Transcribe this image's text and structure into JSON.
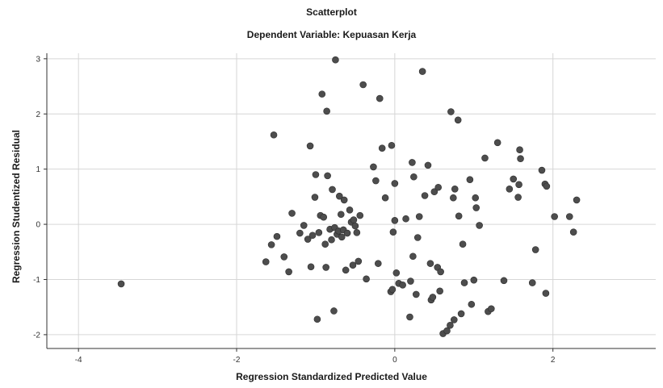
{
  "chart_data": {
    "type": "scatter",
    "title": "Scatterplot",
    "subtitle": "Dependent Variable: Kepuasan Kerja",
    "xlabel": "Regression Standardized Predicted Value",
    "ylabel": "Regression Studentized Residual",
    "xlim": [
      -4.4,
      3.3
    ],
    "ylim": [
      -2.25,
      3.1
    ],
    "x_ticks": [
      -4,
      -2,
      0,
      2
    ],
    "x_tick_labels": [
      "-4",
      "-2",
      "0",
      "2"
    ],
    "y_ticks": [
      -2,
      -1,
      0,
      1,
      2,
      3
    ],
    "y_tick_labels": [
      "-2",
      "-1",
      "0",
      "1",
      "2",
      "3"
    ],
    "grid": true,
    "colors": {
      "points": "#4d4d4d",
      "grid": "#d6d6d6",
      "axis": "#333333"
    },
    "points": [
      [
        -3.46,
        -1.08
      ],
      [
        -1.53,
        1.62
      ],
      [
        -1.63,
        -0.68
      ],
      [
        -1.56,
        -0.37
      ],
      [
        -1.49,
        -0.22
      ],
      [
        -1.4,
        -0.59
      ],
      [
        -1.34,
        -0.86
      ],
      [
        -1.3,
        0.2
      ],
      [
        -1.2,
        -0.16
      ],
      [
        -1.15,
        -0.02
      ],
      [
        -1.1,
        -0.27
      ],
      [
        -1.07,
        1.42
      ],
      [
        -1.06,
        -0.77
      ],
      [
        -1.04,
        -0.2
      ],
      [
        -1.01,
        0.49
      ],
      [
        -1.0,
        0.9
      ],
      [
        -0.98,
        -1.72
      ],
      [
        -0.96,
        -0.15
      ],
      [
        -0.94,
        0.16
      ],
      [
        -0.92,
        2.36
      ],
      [
        -0.9,
        0.13
      ],
      [
        -0.88,
        -0.36
      ],
      [
        -0.87,
        -0.78
      ],
      [
        -0.86,
        2.05
      ],
      [
        -0.85,
        0.88
      ],
      [
        -0.82,
        -0.09
      ],
      [
        -0.8,
        -0.28
      ],
      [
        -0.79,
        0.63
      ],
      [
        -0.77,
        -1.57
      ],
      [
        -0.76,
        -0.06
      ],
      [
        -0.75,
        2.98
      ],
      [
        -0.73,
        -0.18
      ],
      [
        -0.71,
        -0.12
      ],
      [
        -0.7,
        0.51
      ],
      [
        -0.68,
        0.18
      ],
      [
        -0.67,
        -0.23
      ],
      [
        -0.65,
        -0.1
      ],
      [
        -0.64,
        0.44
      ],
      [
        -0.62,
        -0.83
      ],
      [
        -0.6,
        -0.16
      ],
      [
        -0.57,
        0.26
      ],
      [
        -0.55,
        0.04
      ],
      [
        -0.53,
        -0.74
      ],
      [
        -0.52,
        0.08
      ],
      [
        -0.5,
        -0.03
      ],
      [
        -0.48,
        -0.15
      ],
      [
        -0.46,
        -0.67
      ],
      [
        -0.44,
        0.16
      ],
      [
        -0.4,
        2.53
      ],
      [
        -0.36,
        -0.99
      ],
      [
        -0.27,
        1.04
      ],
      [
        -0.24,
        0.79
      ],
      [
        -0.21,
        -0.71
      ],
      [
        -0.19,
        2.28
      ],
      [
        -0.16,
        1.38
      ],
      [
        -0.12,
        0.48
      ],
      [
        -0.05,
        -1.22
      ],
      [
        -0.04,
        1.43
      ],
      [
        -0.03,
        -1.18
      ],
      [
        -0.02,
        -0.14
      ],
      [
        0.0,
        0.74
      ],
      [
        0.0,
        0.07
      ],
      [
        0.02,
        -0.88
      ],
      [
        0.05,
        -1.07
      ],
      [
        0.1,
        -1.1
      ],
      [
        0.14,
        0.1
      ],
      [
        0.19,
        -1.68
      ],
      [
        0.2,
        -1.03
      ],
      [
        0.22,
        1.12
      ],
      [
        0.23,
        -0.58
      ],
      [
        0.24,
        0.86
      ],
      [
        0.27,
        -1.27
      ],
      [
        0.29,
        -0.24
      ],
      [
        0.31,
        0.14
      ],
      [
        0.35,
        2.77
      ],
      [
        0.38,
        0.52
      ],
      [
        0.42,
        1.07
      ],
      [
        0.45,
        -0.71
      ],
      [
        0.46,
        -1.37
      ],
      [
        0.48,
        -1.32
      ],
      [
        0.5,
        0.59
      ],
      [
        0.54,
        -0.78
      ],
      [
        0.55,
        0.67
      ],
      [
        0.57,
        -1.21
      ],
      [
        0.58,
        -0.86
      ],
      [
        0.61,
        -1.98
      ],
      [
        0.66,
        -1.93
      ],
      [
        0.7,
        -1.83
      ],
      [
        0.71,
        2.04
      ],
      [
        0.74,
        0.48
      ],
      [
        0.75,
        -1.73
      ],
      [
        0.76,
        0.64
      ],
      [
        0.8,
        1.89
      ],
      [
        0.81,
        0.15
      ],
      [
        0.84,
        -1.62
      ],
      [
        0.86,
        -0.36
      ],
      [
        0.88,
        -1.06
      ],
      [
        0.95,
        0.81
      ],
      [
        0.97,
        -1.45
      ],
      [
        1.0,
        -1.01
      ],
      [
        1.02,
        0.48
      ],
      [
        1.03,
        0.3
      ],
      [
        1.07,
        -0.02
      ],
      [
        1.14,
        1.2
      ],
      [
        1.18,
        -1.58
      ],
      [
        1.22,
        -1.53
      ],
      [
        1.3,
        1.48
      ],
      [
        1.38,
        -1.02
      ],
      [
        1.45,
        0.64
      ],
      [
        1.5,
        0.82
      ],
      [
        1.56,
        0.49
      ],
      [
        1.57,
        0.72
      ],
      [
        1.58,
        1.35
      ],
      [
        1.59,
        1.19
      ],
      [
        1.74,
        -1.06
      ],
      [
        1.78,
        -0.46
      ],
      [
        1.86,
        0.98
      ],
      [
        1.9,
        0.73
      ],
      [
        1.92,
        0.69
      ],
      [
        1.91,
        -1.25
      ],
      [
        2.02,
        0.14
      ],
      [
        2.21,
        0.14
      ],
      [
        2.26,
        -0.14
      ],
      [
        2.3,
        0.44
      ]
    ]
  }
}
